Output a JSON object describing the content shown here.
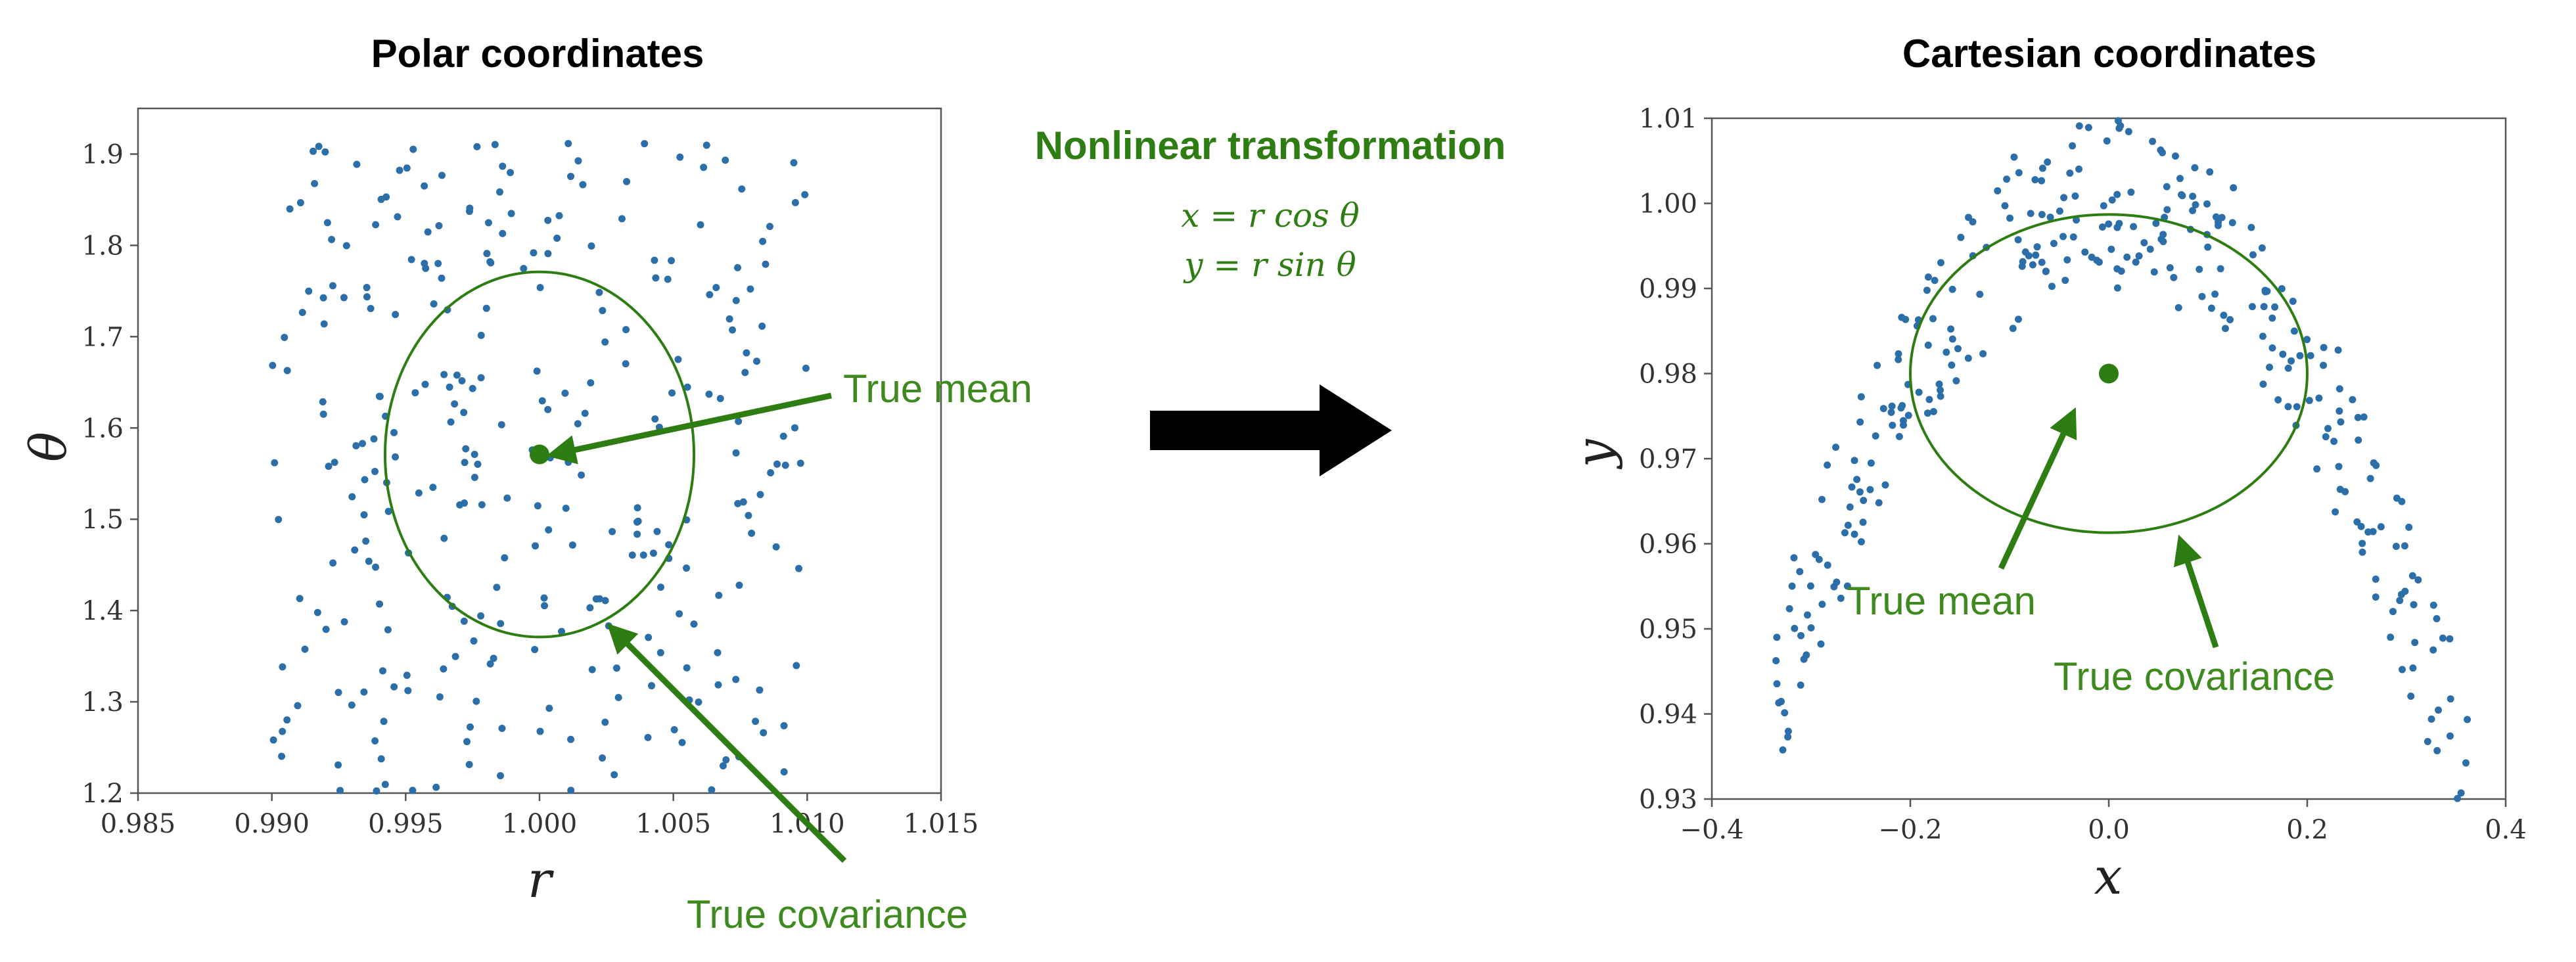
{
  "colors": {
    "points": "#2b6ea8",
    "accent": "#2e7d12",
    "arrow_big": "#000000"
  },
  "center": {
    "title": "Nonlinear transformation",
    "equation_x": "x = r cos θ",
    "equation_y": "y = r sin θ",
    "big_arrow_icon": "right-arrow-icon"
  },
  "chart_data": [
    {
      "type": "scatter",
      "title": "Polar coordinates",
      "xlabel": "r",
      "ylabel": "θ",
      "xlim": [
        0.985,
        1.015
      ],
      "ylim": [
        1.2,
        1.95
      ],
      "xticks": [
        0.985,
        0.99,
        0.995,
        1.0,
        1.005,
        1.01,
        1.015
      ],
      "xtick_labels": [
        "0.985",
        "0.990",
        "0.995",
        "1.000",
        "1.005",
        "1.010",
        "1.015"
      ],
      "yticks": [
        1.2,
        1.3,
        1.4,
        1.5,
        1.6,
        1.7,
        1.8,
        1.9
      ],
      "ytick_labels": [
        "1.2",
        "1.3",
        "1.4",
        "1.5",
        "1.6",
        "1.7",
        "1.8",
        "1.9"
      ],
      "points_spec": {
        "count": 300,
        "x_range": [
          0.99,
          1.01
        ],
        "y_range": [
          1.2,
          1.92
        ],
        "distribution": "uniform"
      },
      "mean": {
        "x": 1.0,
        "y": 1.571,
        "label": "True mean"
      },
      "covariance_ellipse": {
        "cx": 1.0,
        "cy": 1.571,
        "rx": 0.00577,
        "ry": 0.2,
        "label": "True covariance"
      },
      "grid": false
    },
    {
      "type": "scatter",
      "title": "Cartesian coordinates",
      "xlabel": "x",
      "ylabel": "y",
      "xlim": [
        -0.4,
        0.4
      ],
      "ylim": [
        0.93,
        1.01
      ],
      "xticks": [
        -0.4,
        -0.2,
        0.0,
        0.2,
        0.4
      ],
      "xtick_labels": [
        "−0.4",
        "−0.2",
        "0.0",
        "0.2",
        "0.4"
      ],
      "yticks": [
        0.93,
        0.94,
        0.95,
        0.96,
        0.97,
        0.98,
        0.99,
        1.0,
        1.01
      ],
      "ytick_labels": [
        "0.93",
        "0.94",
        "0.95",
        "0.96",
        "0.97",
        "0.98",
        "0.99",
        "1.00",
        "1.01"
      ],
      "points_spec": {
        "count": 300,
        "derived_from": "polar samples",
        "transform": "x = r cos θ, y = r sin θ"
      },
      "mean": {
        "x": 0.0,
        "y": 0.98,
        "label": "True mean"
      },
      "covariance_ellipse": {
        "cx": 0.0,
        "cy": 0.98,
        "rx": 0.2,
        "ry": 0.0187,
        "label": "True covariance"
      },
      "grid": false
    }
  ]
}
